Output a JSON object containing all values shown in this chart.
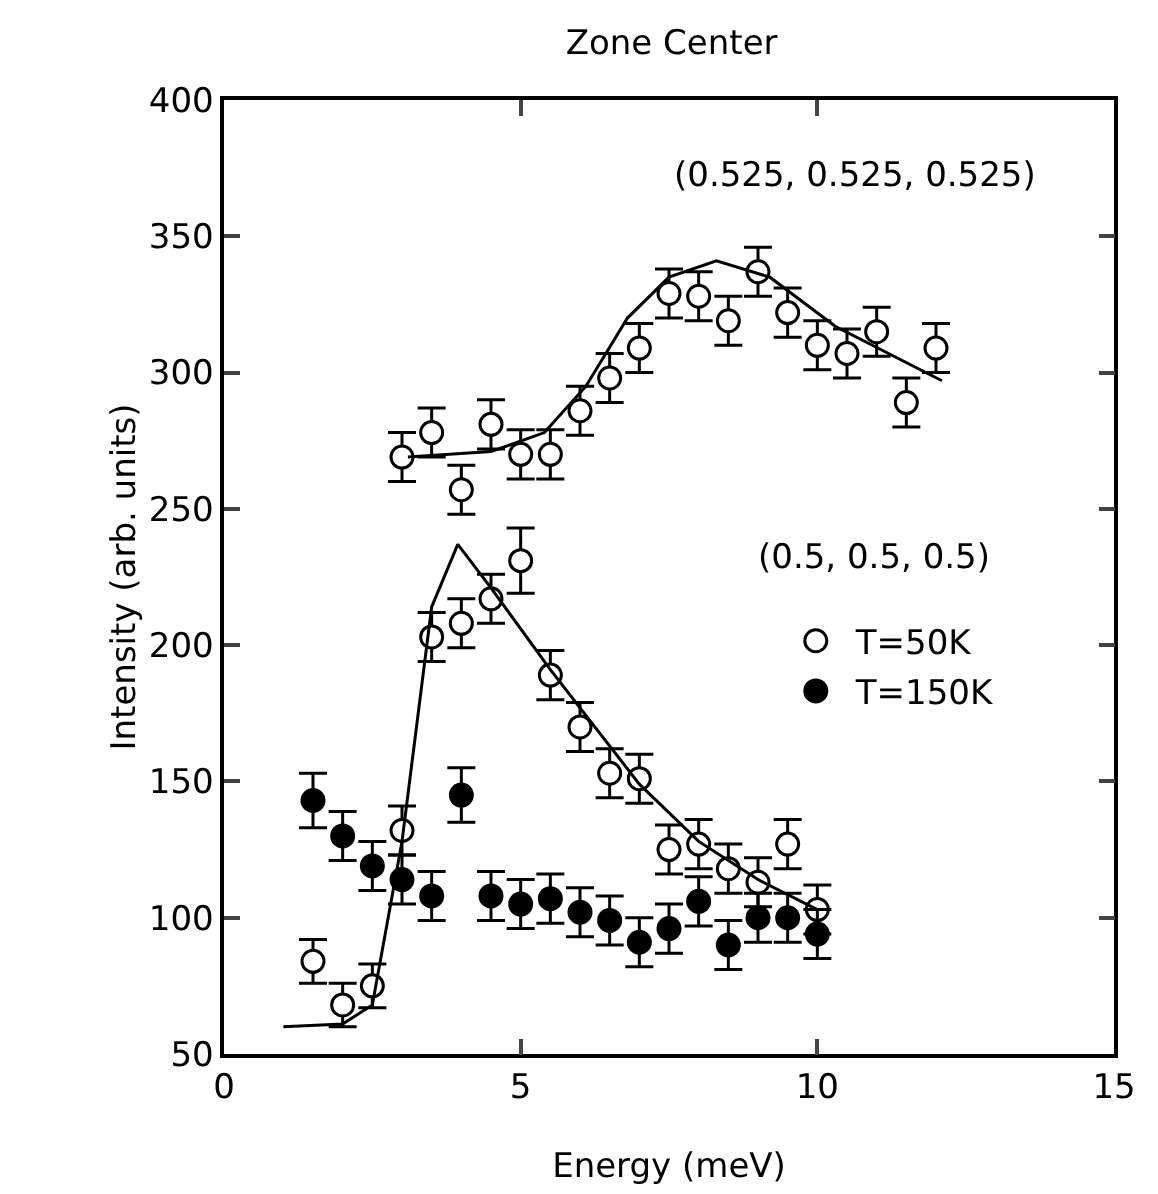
{
  "chart_data": {
    "type": "scatter",
    "title": "Zone Center",
    "xlabel": "Energy (meV)",
    "ylabel": "Intensity (arb. units)",
    "xlim": [
      0,
      15
    ],
    "xticks": [
      0,
      5,
      10,
      15
    ],
    "ylim": [
      50,
      400
    ],
    "yticks": [
      50,
      100,
      150,
      200,
      250,
      300,
      350,
      400
    ],
    "grid": false,
    "legend": "right",
    "marker": "circle",
    "annotations": [
      "(0.525, 0.525, 0.525)",
      "(0.5, 0.5, 0.5)"
    ],
    "series": [
      {
        "color": "#ffffff",
        "x": [
          3,
          3.5,
          4,
          4.5,
          5,
          5.5,
          6,
          6.5,
          7,
          7.5,
          8,
          8.5,
          9,
          9.5,
          10,
          10.5,
          11,
          11.5,
          12
        ],
        "values": [
          269,
          278,
          257,
          281,
          270,
          270,
          286,
          298,
          309,
          329,
          328,
          319,
          337,
          322,
          310,
          307,
          315,
          289,
          309
        ],
        "errors": [
          9,
          9,
          9,
          9,
          9,
          9,
          9,
          9,
          9,
          9,
          9,
          9,
          9,
          9,
          9,
          9,
          9,
          9,
          9
        ]
      },
      {
        "type": "line",
        "color": "#000000",
        "marker": "none",
        "x": [
          3.1,
          4.5,
          5.4,
          6.1,
          6.8,
          7.5,
          8.3,
          9.2,
          10.3,
          12.1
        ],
        "values": [
          269,
          271,
          278,
          295,
          320,
          335,
          341,
          335,
          317,
          297
        ]
      },
      {
        "name": "T=50K",
        "color": "#ffffff",
        "x": [
          1.5,
          2,
          2.5,
          3,
          3.5,
          4,
          4.5,
          5,
          5.5,
          6,
          6.5,
          7,
          7.5,
          8,
          8.5,
          9,
          9.5,
          10
        ],
        "values": [
          84,
          68,
          75,
          132,
          203,
          208,
          217,
          231,
          189,
          170,
          153,
          151,
          125,
          127,
          118,
          113,
          127,
          103
        ],
        "errors": [
          8,
          8,
          8,
          9,
          9,
          9,
          9,
          12,
          9,
          9,
          9,
          9,
          9,
          9,
          9,
          9,
          9,
          9
        ]
      },
      {
        "name": "T=150K",
        "color": "#000000",
        "x": [
          1.5,
          2,
          2.5,
          3,
          3.5,
          4,
          4.5,
          5,
          5.5,
          6,
          6.5,
          7,
          7.5,
          8,
          8.5,
          9,
          9.5,
          10
        ],
        "values": [
          143,
          130,
          119,
          114,
          108,
          145,
          108,
          105,
          107,
          102,
          99,
          91,
          96,
          106,
          90,
          100,
          100,
          94
        ],
        "errors": [
          10,
          9,
          9,
          9,
          9,
          10,
          9,
          9,
          9,
          9,
          9,
          9,
          9,
          9,
          9,
          9,
          9,
          9
        ]
      },
      {
        "type": "line",
        "color": "#000000",
        "marker": "none",
        "x": [
          1,
          2,
          2.5,
          3,
          3.5,
          3.94,
          4.5,
          5.5,
          7,
          8,
          9,
          10
        ],
        "values": [
          60,
          61,
          68,
          128,
          214,
          237,
          221,
          191,
          149,
          128,
          114,
          103
        ]
      }
    ]
  }
}
